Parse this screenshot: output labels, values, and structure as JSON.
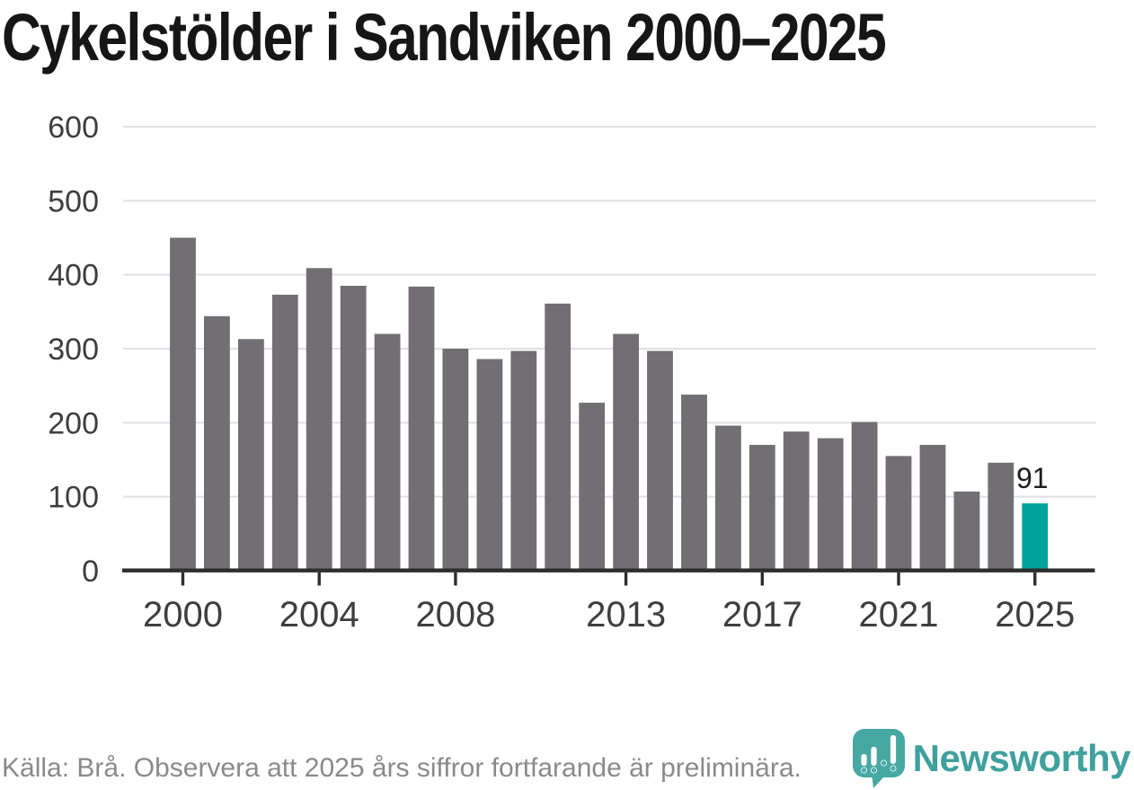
{
  "title": "Cykelstölder i Sandviken 2000–2025",
  "chart_data": {
    "type": "bar",
    "title": "Cykelstölder i Sandviken 2000–2025",
    "categories": [
      2000,
      2001,
      2002,
      2003,
      2004,
      2005,
      2006,
      2007,
      2008,
      2009,
      2010,
      2011,
      2012,
      2013,
      2014,
      2015,
      2016,
      2017,
      2018,
      2019,
      2020,
      2021,
      2022,
      2023,
      2024,
      2025
    ],
    "values": [
      450,
      344,
      313,
      373,
      409,
      385,
      320,
      384,
      300,
      286,
      297,
      361,
      227,
      320,
      297,
      238,
      196,
      170,
      188,
      179,
      201,
      155,
      170,
      107,
      146,
      91
    ],
    "highlight": {
      "category": 2025,
      "value_label": "91"
    },
    "xlabel": "",
    "ylabel": "",
    "ylim": [
      0,
      600
    ],
    "yticks": [
      0,
      100,
      200,
      300,
      400,
      500,
      600
    ],
    "xticks": [
      2000,
      2004,
      2008,
      2013,
      2017,
      2021,
      2025
    ],
    "grid": "horizontal",
    "legend": "none"
  },
  "colors": {
    "bar": "#716E74",
    "bar_highlight": "#00A39C",
    "gridline": "#E1E1E1",
    "axis_line": "#2E2E2E",
    "tick_label": "#3E3E3E",
    "value_label": "#1C1C1C",
    "footer_text": "#8A8A8A",
    "brand_teal": "#3FA09D",
    "logo_bubble": "#45A8A3"
  },
  "footer": {
    "source_note": "Källa: Brå. Observera att 2025 års siffror fortfarande är preliminära."
  },
  "branding": {
    "name": "Newsworthy",
    "logo_icon": "speech-bubble-bar-chart"
  }
}
